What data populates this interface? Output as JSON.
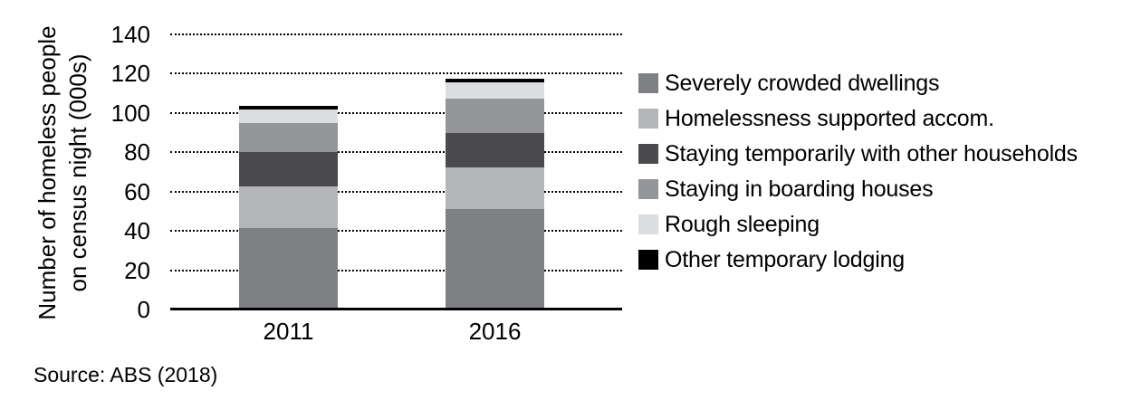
{
  "figure": {
    "y_axis_title": {
      "line1": "Number of homeless people",
      "line2": "on census night (000s)"
    },
    "source_note": "Source: ABS (2018)"
  },
  "chart_data": {
    "type": "bar",
    "stacked": true,
    "title": "",
    "xlabel": "",
    "ylabel": "Number of homeless people on census night (000s)",
    "ylim": [
      0,
      140
    ],
    "yticks": [
      0,
      20,
      40,
      60,
      80,
      100,
      120,
      140
    ],
    "grid": "horizontal-dotted",
    "legend_position": "right",
    "categories": [
      "2011",
      "2016"
    ],
    "series": [
      {
        "name": "Severely crowded dwellings",
        "color": "#7f8083",
        "values": [
          41.4,
          51.1
        ]
      },
      {
        "name": "Homelessness supported accom.",
        "color": "#b4b5b7",
        "values": [
          21.3,
          21.2
        ]
      },
      {
        "name": "Staying temporarily with other households",
        "color": "#4b4b4d",
        "values": [
          17.4,
          17.7
        ]
      },
      {
        "name": "Staying in boarding houses",
        "color": "#949599",
        "values": [
          14.9,
          17.5
        ]
      },
      {
        "name": "Rough sleeping",
        "color": "#dcdde0",
        "values": [
          6.8,
          8.2
        ]
      },
      {
        "name": "Other temporary lodging",
        "color": "#000000",
        "values": [
          0.7,
          0.7
        ]
      }
    ],
    "approx_totals": [
      102.4,
      116.4
    ]
  }
}
